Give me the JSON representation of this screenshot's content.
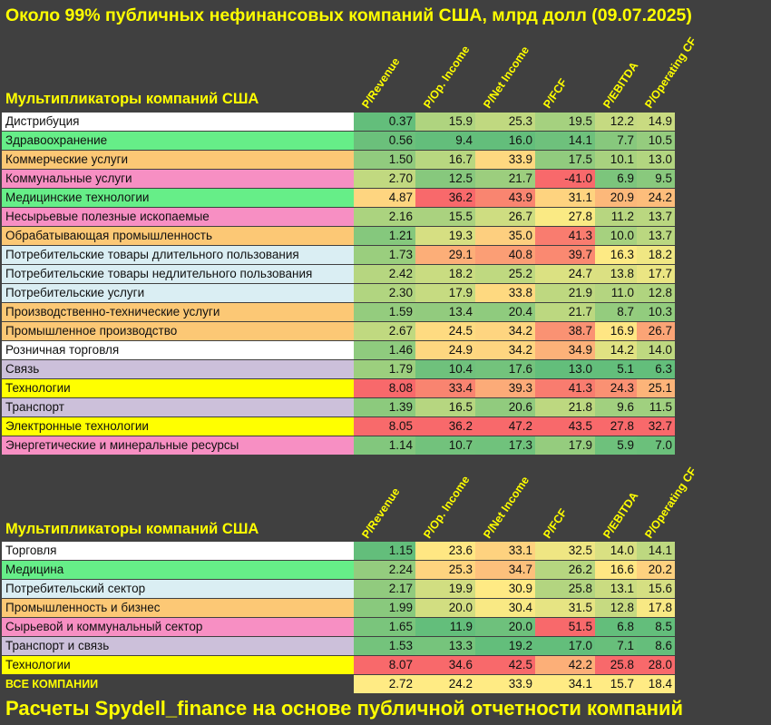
{
  "title": "Около 99% публичных нефинансовых компаний США, млрд долл (09.07.2025)",
  "footer": "Расчеты Spydell_finance на основе публичной отчетности компаний",
  "colors": {
    "background": "#404040",
    "accent_text": "#ffff00",
    "sector_white": "#ffffff",
    "sector_green": "#66ee88",
    "sector_orange": "#fcc875",
    "sector_pink": "#f78fc3",
    "sector_lightblue": "#daeef3",
    "sector_lavender": "#ccc0da",
    "sector_yellow": "#ffff00",
    "scale_low": "#63be7b",
    "scale_mid": "#ffeb84",
    "scale_high": "#f8696b"
  },
  "chart_data": [
    {
      "type": "table",
      "title": "Мультипликаторы компаний США",
      "columns": [
        "P/Revenue",
        "P/Op. Income",
        "P/Net Income",
        "P/FCF",
        "P/EBITDA",
        "P/Operating CF"
      ],
      "rows": [
        {
          "label": "Дистрибуция",
          "group": "white",
          "values": [
            "0.37",
            "15.9",
            "25.3",
            "19.5",
            "12.2",
            "14.9"
          ]
        },
        {
          "label": "Здравоохранение",
          "group": "green",
          "values": [
            "0.56",
            "9.4",
            "16.0",
            "14.1",
            "7.7",
            "10.5"
          ]
        },
        {
          "label": "Коммерческие услуги",
          "group": "orange",
          "values": [
            "1.50",
            "16.7",
            "33.9",
            "17.5",
            "10.1",
            "13.0"
          ]
        },
        {
          "label": "Коммунальные услуги",
          "group": "pink",
          "values": [
            "2.70",
            "12.5",
            "21.7",
            "-41.0",
            "6.9",
            "9.5"
          ]
        },
        {
          "label": "Медицинские технологии",
          "group": "green",
          "values": [
            "4.87",
            "36.2",
            "43.9",
            "31.1",
            "20.9",
            "24.2"
          ]
        },
        {
          "label": "Несырьевые полезные ископаемые",
          "group": "pink",
          "values": [
            "2.16",
            "15.5",
            "26.7",
            "27.8",
            "11.2",
            "13.7"
          ]
        },
        {
          "label": "Обрабатывающая промышленность",
          "group": "orange",
          "values": [
            "1.21",
            "19.3",
            "35.0",
            "41.3",
            "10.0",
            "13.7"
          ]
        },
        {
          "label": "Потребительские товары длительного пользования",
          "group": "lightblue",
          "values": [
            "1.73",
            "29.1",
            "40.8",
            "39.7",
            "16.3",
            "18.2"
          ]
        },
        {
          "label": "Потребительские товары недлительного пользования",
          "group": "lightblue",
          "values": [
            "2.42",
            "18.2",
            "25.2",
            "24.7",
            "13.8",
            "17.7"
          ]
        },
        {
          "label": "Потребительские услуги",
          "group": "lightblue",
          "values": [
            "2.30",
            "17.9",
            "33.8",
            "21.9",
            "11.0",
            "12.8"
          ]
        },
        {
          "label": "Производственно-технические услуги",
          "group": "orange",
          "values": [
            "1.59",
            "13.4",
            "20.4",
            "21.7",
            "8.7",
            "10.3"
          ]
        },
        {
          "label": "Промышленное производство",
          "group": "orange",
          "values": [
            "2.67",
            "24.5",
            "34.2",
            "38.7",
            "16.9",
            "26.7"
          ]
        },
        {
          "label": "Розничная торговля",
          "group": "white",
          "values": [
            "1.46",
            "24.9",
            "34.2",
            "34.9",
            "14.2",
            "14.0"
          ]
        },
        {
          "label": "Связь",
          "group": "lavender",
          "values": [
            "1.79",
            "10.4",
            "17.6",
            "13.0",
            "5.1",
            "6.3"
          ]
        },
        {
          "label": "Технологии",
          "group": "yellow",
          "values": [
            "8.08",
            "33.4",
            "39.3",
            "41.3",
            "24.3",
            "25.1"
          ]
        },
        {
          "label": "Транспорт",
          "group": "lavender",
          "values": [
            "1.39",
            "16.5",
            "20.6",
            "21.8",
            "9.6",
            "11.5"
          ]
        },
        {
          "label": "Электронные технологии",
          "group": "yellow",
          "values": [
            "8.05",
            "36.2",
            "47.2",
            "43.5",
            "27.8",
            "32.7"
          ]
        },
        {
          "label": "Энергетические и минеральные ресурсы",
          "group": "pink",
          "values": [
            "1.14",
            "10.7",
            "17.3",
            "17.9",
            "5.9",
            "7.0"
          ]
        }
      ]
    },
    {
      "type": "table",
      "title": "Мультипликаторы компаний США",
      "columns": [
        "P/Revenue",
        "P/Op. Income",
        "P/Net Income",
        "P/FCF",
        "P/EBITDA",
        "P/Operating CF"
      ],
      "rows": [
        {
          "label": "Торговля",
          "group": "white",
          "values": [
            "1.15",
            "23.6",
            "33.1",
            "32.5",
            "14.0",
            "14.1"
          ]
        },
        {
          "label": "Медицина",
          "group": "green",
          "values": [
            "2.24",
            "25.3",
            "34.7",
            "26.2",
            "16.6",
            "20.2"
          ]
        },
        {
          "label": "Потребительский сектор",
          "group": "lightblue",
          "values": [
            "2.17",
            "19.9",
            "30.9",
            "25.8",
            "13.1",
            "15.6"
          ]
        },
        {
          "label": "Промышленность и бизнес",
          "group": "orange",
          "values": [
            "1.99",
            "20.0",
            "30.4",
            "31.5",
            "12.8",
            "17.8"
          ]
        },
        {
          "label": "Сырьевой и коммунальный сектор",
          "group": "pink",
          "values": [
            "1.65",
            "11.9",
            "20.0",
            "51.5",
            "6.8",
            "8.5"
          ]
        },
        {
          "label": "Транспорт и связь",
          "group": "lavender",
          "values": [
            "1.53",
            "13.3",
            "19.2",
            "17.0",
            "7.1",
            "8.6"
          ]
        },
        {
          "label": "Технологии",
          "group": "yellow",
          "values": [
            "8.07",
            "34.6",
            "42.5",
            "42.2",
            "25.8",
            "28.0"
          ]
        }
      ],
      "total": {
        "label": "ВСЕ КОМПАНИИ",
        "values": [
          "2.72",
          "24.2",
          "33.9",
          "34.1",
          "15.7",
          "18.4"
        ]
      }
    }
  ]
}
